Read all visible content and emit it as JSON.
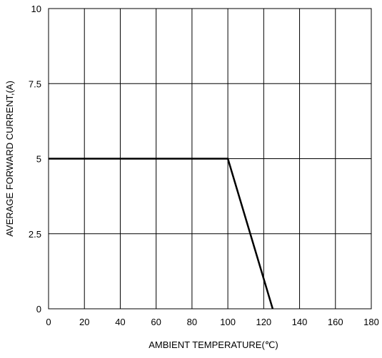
{
  "chart_data": {
    "type": "line",
    "title": "",
    "xlabel": "AMBIENT TEMPERATURE(℃)",
    "ylabel": "AVERAGE FORWARD CURRENT,(A)",
    "xlim": [
      0,
      180
    ],
    "ylim": [
      0,
      10
    ],
    "x_ticks": [
      0,
      20,
      40,
      60,
      80,
      100,
      120,
      140,
      160,
      180
    ],
    "x_tick_labels": [
      "0",
      "20",
      "40",
      "60",
      "80",
      "100",
      "120",
      "140",
      "160",
      "180"
    ],
    "y_ticks": [
      0,
      2.5,
      5,
      7.5,
      10
    ],
    "y_tick_labels": [
      "0",
      "2.5",
      "5",
      "7.5",
      "10"
    ],
    "grid": true,
    "legend": "none",
    "series": [
      {
        "x": [
          0,
          100,
          125
        ],
        "y": [
          5,
          5,
          0
        ],
        "color": "#000000"
      }
    ]
  }
}
